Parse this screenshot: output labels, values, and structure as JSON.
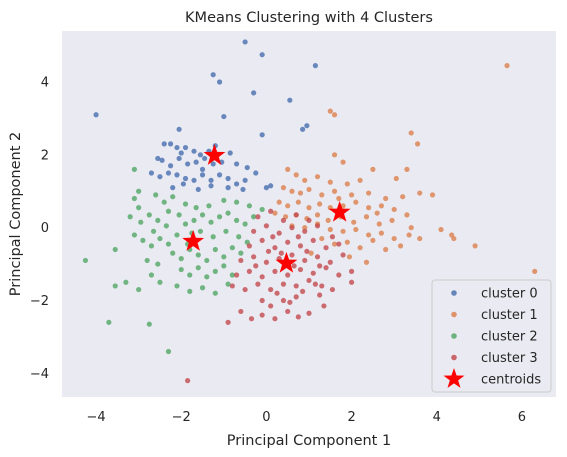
{
  "chart_data": {
    "type": "scatter",
    "title": "KMeans Clustering with 4 Clusters",
    "xlabel": "Principal Component 1",
    "ylabel": "Principal Component 2",
    "xlim": [
      -4.8,
      6.8
    ],
    "ylim": [
      -4.65,
      5.4
    ],
    "xticks": [
      -4,
      -2,
      0,
      2,
      4,
      6
    ],
    "yticks": [
      -4,
      -2,
      0,
      2,
      4
    ],
    "grid": false,
    "legend_position": "lower-right",
    "series": [
      {
        "name": "cluster 0",
        "color": "#4c72b0",
        "marker": "circle",
        "points": [
          [
            -4.0,
            3.1
          ],
          [
            -0.5,
            5.1
          ],
          [
            -0.1,
            4.75
          ],
          [
            1.15,
            4.45
          ],
          [
            -1.25,
            4.2
          ],
          [
            -1.1,
            4.0
          ],
          [
            -1.0,
            3.05
          ],
          [
            -0.3,
            3.7
          ],
          [
            0.55,
            3.5
          ],
          [
            0.95,
            2.8
          ],
          [
            0.85,
            2.7
          ],
          [
            -0.1,
            2.55
          ],
          [
            -2.05,
            2.7
          ],
          [
            -2.4,
            2.3
          ],
          [
            -2.25,
            2.3
          ],
          [
            -2.1,
            2.2
          ],
          [
            -1.9,
            2.2
          ],
          [
            -1.7,
            2.1
          ],
          [
            -1.55,
            2.0
          ],
          [
            -1.35,
            2.1
          ],
          [
            -1.2,
            2.25
          ],
          [
            -0.85,
            2.05
          ],
          [
            -2.55,
            1.9
          ],
          [
            -2.45,
            1.85
          ],
          [
            -2.25,
            1.7
          ],
          [
            -2.05,
            1.9
          ],
          [
            -1.85,
            1.75
          ],
          [
            -1.65,
            1.8
          ],
          [
            -1.45,
            1.9
          ],
          [
            -1.25,
            1.75
          ],
          [
            -1.05,
            1.8
          ],
          [
            -0.7,
            1.75
          ],
          [
            -0.45,
            1.65
          ],
          [
            -0.25,
            1.5
          ],
          [
            -2.7,
            1.5
          ],
          [
            -2.5,
            1.4
          ],
          [
            -2.3,
            1.5
          ],
          [
            -2.1,
            1.45
          ],
          [
            -1.9,
            1.35
          ],
          [
            -1.7,
            1.3
          ],
          [
            -1.5,
            1.45
          ],
          [
            -1.3,
            1.3
          ],
          [
            -1.1,
            1.45
          ],
          [
            -0.9,
            1.35
          ],
          [
            -0.7,
            1.2
          ],
          [
            -0.5,
            1.3
          ],
          [
            -2.2,
            1.1
          ],
          [
            -1.95,
            1.2
          ],
          [
            -1.6,
            1.05
          ],
          [
            -1.3,
            1.15
          ],
          [
            -0.9,
            1.1
          ],
          [
            0.0,
            1.1
          ],
          [
            -0.55,
            1.05
          ],
          [
            0.1,
            1.15
          ],
          [
            -2.0,
            2.05
          ],
          [
            -1.5,
            1.6
          ]
        ]
      },
      {
        "name": "cluster 1",
        "color": "#dd8452",
        "marker": "circle",
        "points": [
          [
            5.65,
            4.45
          ],
          [
            1.5,
            3.2
          ],
          [
            1.6,
            3.1
          ],
          [
            3.4,
            2.6
          ],
          [
            3.55,
            2.3
          ],
          [
            1.6,
            2.0
          ],
          [
            1.8,
            1.8
          ],
          [
            2.5,
            1.6
          ],
          [
            3.05,
            1.35
          ],
          [
            3.3,
            1.6
          ],
          [
            0.5,
            1.6
          ],
          [
            0.7,
            1.45
          ],
          [
            0.9,
            1.3
          ],
          [
            1.2,
            1.4
          ],
          [
            1.5,
            1.25
          ],
          [
            1.9,
            1.2
          ],
          [
            2.2,
            1.3
          ],
          [
            0.4,
            1.1
          ],
          [
            0.6,
            1.0
          ],
          [
            0.8,
            0.95
          ],
          [
            1.0,
            1.05
          ],
          [
            1.3,
            0.9
          ],
          [
            1.6,
            1.0
          ],
          [
            2.0,
            0.9
          ],
          [
            2.4,
            0.95
          ],
          [
            2.8,
            0.8
          ],
          [
            3.2,
            0.85
          ],
          [
            3.6,
            0.95
          ],
          [
            3.9,
            0.9
          ],
          [
            0.3,
            0.7
          ],
          [
            0.5,
            0.6
          ],
          [
            0.75,
            0.7
          ],
          [
            1.0,
            0.55
          ],
          [
            1.25,
            0.65
          ],
          [
            1.5,
            0.55
          ],
          [
            1.8,
            0.6
          ],
          [
            2.1,
            0.7
          ],
          [
            2.4,
            0.55
          ],
          [
            2.7,
            0.6
          ],
          [
            3.0,
            0.5
          ],
          [
            3.3,
            0.35
          ],
          [
            0.2,
            0.4
          ],
          [
            0.45,
            0.3
          ],
          [
            0.7,
            0.35
          ],
          [
            0.95,
            0.25
          ],
          [
            1.2,
            0.35
          ],
          [
            1.45,
            0.2
          ],
          [
            1.75,
            0.3
          ],
          [
            2.05,
            0.15
          ],
          [
            2.35,
            0.3
          ],
          [
            2.65,
            0.1
          ],
          [
            2.95,
            0.2
          ],
          [
            0.6,
            0.05
          ],
          [
            0.9,
            0.0
          ],
          [
            1.2,
            0.1
          ],
          [
            1.5,
            -0.05
          ],
          [
            1.8,
            -0.1
          ],
          [
            2.1,
            -0.05
          ],
          [
            2.4,
            -0.2
          ],
          [
            2.7,
            -0.15
          ],
          [
            3.0,
            -0.3
          ],
          [
            1.3,
            -0.3
          ],
          [
            1.6,
            -0.45
          ],
          [
            1.9,
            -0.4
          ],
          [
            2.2,
            -0.55
          ],
          [
            2.5,
            -0.35
          ],
          [
            2.8,
            -0.6
          ],
          [
            3.35,
            -0.2
          ],
          [
            3.6,
            -0.3
          ],
          [
            1.05,
            -0.7
          ],
          [
            1.95,
            -0.8
          ],
          [
            2.35,
            -0.95
          ],
          [
            3.4,
            0.0
          ],
          [
            4.1,
            -0.05
          ],
          [
            4.35,
            -0.2
          ],
          [
            4.4,
            -0.3
          ],
          [
            4.9,
            -0.5
          ],
          [
            6.3,
            -1.2
          ],
          [
            3.15,
            -0.5
          ],
          [
            1.7,
            0.8
          ],
          [
            2.6,
            0.4
          ]
        ]
      },
      {
        "name": "cluster 2",
        "color": "#55a868",
        "marker": "circle",
        "points": [
          [
            -4.25,
            -0.9
          ],
          [
            -3.7,
            -2.6
          ],
          [
            -2.75,
            -2.65
          ],
          [
            -2.3,
            -3.4
          ],
          [
            -3.1,
            1.6
          ],
          [
            -3.0,
            1.0
          ],
          [
            -3.1,
            0.8
          ],
          [
            -3.55,
            -0.6
          ],
          [
            -3.3,
            -1.5
          ],
          [
            -3.55,
            -1.6
          ],
          [
            -3.0,
            -1.7
          ],
          [
            -2.7,
            -1.3
          ],
          [
            -2.5,
            -1.5
          ],
          [
            -3.2,
            0.3
          ],
          [
            -2.95,
            0.15
          ],
          [
            -2.75,
            0.35
          ],
          [
            -2.55,
            0.2
          ],
          [
            -2.35,
            0.05
          ],
          [
            -3.1,
            -0.2
          ],
          [
            -2.9,
            -0.35
          ],
          [
            -2.7,
            -0.5
          ],
          [
            -2.5,
            -0.3
          ],
          [
            -2.3,
            -0.45
          ],
          [
            -2.1,
            -0.2
          ],
          [
            -1.9,
            0.1
          ],
          [
            -1.7,
            0.2
          ],
          [
            -1.5,
            0.35
          ],
          [
            -1.3,
            0.15
          ],
          [
            -1.1,
            0.3
          ],
          [
            -0.9,
            0.4
          ],
          [
            -0.7,
            0.2
          ],
          [
            -0.5,
            0.1
          ],
          [
            -0.3,
            0.3
          ],
          [
            -0.1,
            0.5
          ],
          [
            -2.2,
            -0.7
          ],
          [
            -2.0,
            -0.85
          ],
          [
            -1.8,
            -0.6
          ],
          [
            -1.6,
            -0.75
          ],
          [
            -1.4,
            -0.9
          ],
          [
            -1.2,
            -0.6
          ],
          [
            -1.0,
            -0.8
          ],
          [
            -0.8,
            -0.55
          ],
          [
            -0.6,
            -0.7
          ],
          [
            -2.0,
            -1.15
          ],
          [
            -1.8,
            -1.3
          ],
          [
            -1.6,
            -1.1
          ],
          [
            -1.4,
            -1.35
          ],
          [
            -1.2,
            -1.2
          ],
          [
            -1.0,
            -1.05
          ],
          [
            -0.8,
            -1.3
          ],
          [
            -2.1,
            -1.6
          ],
          [
            -1.8,
            -1.75
          ],
          [
            -1.5,
            -1.65
          ],
          [
            -1.2,
            -1.8
          ],
          [
            -0.9,
            -1.55
          ],
          [
            -2.6,
            0.9
          ],
          [
            -2.4,
            0.7
          ],
          [
            -2.2,
            0.85
          ],
          [
            -1.9,
            0.65
          ],
          [
            -1.65,
            0.55
          ],
          [
            -1.35,
            0.6
          ],
          [
            -1.0,
            0.75
          ],
          [
            -0.7,
            0.7
          ],
          [
            -0.4,
            0.6
          ],
          [
            -2.8,
            -0.9
          ],
          [
            -2.55,
            -1.0
          ],
          [
            -1.75,
            -0.15
          ],
          [
            -1.55,
            -0.1
          ],
          [
            -1.25,
            -0.25
          ],
          [
            -0.95,
            -0.1
          ],
          [
            -0.65,
            -0.25
          ],
          [
            -0.45,
            -0.4
          ],
          [
            -2.3,
            0.45
          ],
          [
            -2.05,
            0.35
          ],
          [
            -1.85,
            -0.45
          ],
          [
            -2.65,
            -0.1
          ],
          [
            -3.0,
            0.55
          ]
        ]
      },
      {
        "name": "cluster 3",
        "color": "#c44e52",
        "marker": "circle",
        "points": [
          [
            -1.85,
            -4.2
          ],
          [
            -0.9,
            -2.6
          ],
          [
            -0.6,
            -2.3
          ],
          [
            -0.35,
            -2.5
          ],
          [
            -0.1,
            -2.4
          ],
          [
            0.2,
            -2.5
          ],
          [
            0.5,
            -2.3
          ],
          [
            0.75,
            -2.45
          ],
          [
            1.0,
            -2.35
          ],
          [
            1.35,
            -2.15
          ],
          [
            -0.1,
            -2.0
          ],
          [
            0.1,
            -2.15
          ],
          [
            0.4,
            -2.0
          ],
          [
            0.7,
            -1.9
          ],
          [
            1.25,
            -1.85
          ],
          [
            -0.5,
            -1.7
          ],
          [
            -0.2,
            -1.55
          ],
          [
            0.1,
            -1.7
          ],
          [
            0.4,
            -1.55
          ],
          [
            0.7,
            -1.6
          ],
          [
            1.0,
            -1.45
          ],
          [
            1.3,
            -1.6
          ],
          [
            -0.7,
            -1.3
          ],
          [
            -0.4,
            -1.2
          ],
          [
            -0.1,
            -1.35
          ],
          [
            0.2,
            -1.2
          ],
          [
            0.5,
            -1.3
          ],
          [
            0.8,
            -1.15
          ],
          [
            1.1,
            -1.25
          ],
          [
            1.4,
            -1.1
          ],
          [
            1.7,
            -1.3
          ],
          [
            2.0,
            -1.2
          ],
          [
            -0.6,
            -0.9
          ],
          [
            -0.3,
            -0.8
          ],
          [
            0.0,
            -0.95
          ],
          [
            0.3,
            -0.85
          ],
          [
            0.6,
            -0.75
          ],
          [
            0.9,
            -0.9
          ],
          [
            1.2,
            -0.8
          ],
          [
            1.5,
            -0.95
          ],
          [
            1.8,
            -0.75
          ],
          [
            -0.4,
            -0.5
          ],
          [
            -0.1,
            -0.35
          ],
          [
            0.2,
            -0.55
          ],
          [
            0.5,
            -0.4
          ],
          [
            0.8,
            -0.5
          ],
          [
            1.1,
            -0.35
          ],
          [
            1.4,
            -0.55
          ],
          [
            1.7,
            -0.45
          ],
          [
            -0.3,
            -0.1
          ],
          [
            0.0,
            0.05
          ],
          [
            0.3,
            -0.15
          ],
          [
            0.6,
            0.0
          ],
          [
            0.9,
            -0.1
          ],
          [
            1.2,
            0.05
          ],
          [
            -0.2,
            0.3
          ],
          [
            0.1,
            0.45
          ],
          [
            0.4,
            0.2
          ],
          [
            0.7,
            0.35
          ],
          [
            1.0,
            0.2
          ],
          [
            2.0,
            -1.5
          ],
          [
            1.55,
            -1.7
          ],
          [
            -0.8,
            -1.6
          ],
          [
            0.25,
            -1.8
          ],
          [
            0.55,
            -2.05
          ],
          [
            0.85,
            -1.75
          ],
          [
            1.15,
            -1.55
          ],
          [
            -0.25,
            -1.05
          ],
          [
            0.05,
            -0.65
          ],
          [
            0.35,
            -0.7
          ],
          [
            0.65,
            -1.05
          ],
          [
            0.95,
            -0.65
          ],
          [
            1.25,
            -1.05
          ],
          [
            1.55,
            -0.25
          ],
          [
            0.45,
            -1.0
          ],
          [
            0.15,
            -0.25
          ],
          [
            0.75,
            -0.25
          ]
        ]
      }
    ],
    "centroids": {
      "name": "centroids",
      "color": "#ff0000",
      "marker": "star",
      "points": [
        [
          -1.22,
          1.98
        ],
        [
          1.72,
          0.42
        ],
        [
          -1.72,
          -0.38
        ],
        [
          0.47,
          -0.98
        ]
      ]
    }
  }
}
